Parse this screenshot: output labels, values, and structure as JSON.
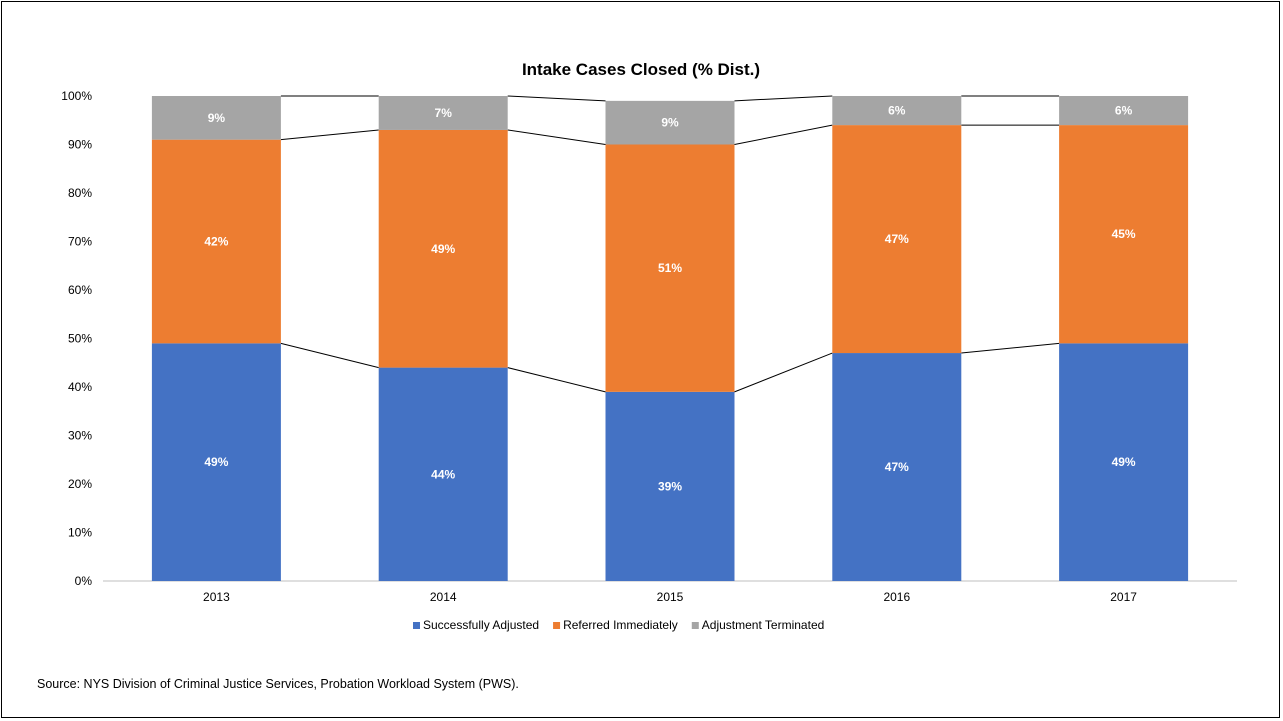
{
  "chart_data": {
    "type": "bar",
    "stacked": true,
    "percent": true,
    "title": "Intake Cases Closed (% Dist.)",
    "categories": [
      "2013",
      "2014",
      "2015",
      "2016",
      "2017"
    ],
    "series": [
      {
        "name": "Successfully Adjusted",
        "color": "#4472C4",
        "values": [
          49,
          44,
          39,
          47,
          49
        ],
        "labels": [
          "49%",
          "44%",
          "39%",
          "47%",
          "49%"
        ]
      },
      {
        "name": "Referred Immediately",
        "color": "#ED7D31",
        "values": [
          42,
          49,
          51,
          47,
          45
        ],
        "labels": [
          "42%",
          "49%",
          "51%",
          "47%",
          "45%"
        ]
      },
      {
        "name": "Adjustment Terminated",
        "color": "#A5A5A5",
        "values": [
          9,
          7,
          9,
          6,
          6
        ],
        "labels": [
          "9%",
          "7%",
          "9%",
          "6%",
          "6%"
        ]
      }
    ],
    "ylim": [
      0,
      100
    ],
    "yticks": [
      "0%",
      "10%",
      "20%",
      "30%",
      "40%",
      "50%",
      "60%",
      "70%",
      "80%",
      "90%",
      "100%"
    ],
    "series_lines": true,
    "grid": false,
    "legend_position": "bottom"
  },
  "source": "Source: NYS Division of Criminal Justice Services, Probation Workload System (PWS)."
}
